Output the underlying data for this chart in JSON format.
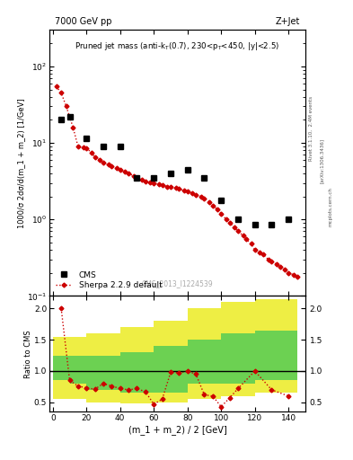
{
  "title_left": "7000 GeV pp",
  "title_right": "Z+Jet",
  "cms_label": "CMS_2013_I1224539",
  "rivet_label": "Rivet 3.1.10,  2.4M events",
  "arxiv_label": "[arXiv:1306.3436]",
  "mcplots_label": "mcplots.cern.ch",
  "ylabel_main": "1000/σ 2dσ/d(m_1 + m_2) [1/GeV]",
  "ylabel_ratio": "Ratio to CMS",
  "xlabel": "(m_1 + m_2) / 2 [GeV]",
  "cms_x": [
    5,
    10,
    20,
    30,
    40,
    50,
    60,
    70,
    80,
    90,
    100,
    110,
    120,
    130,
    140
  ],
  "cms_y": [
    20.0,
    22.0,
    11.5,
    9.0,
    9.0,
    3.5,
    3.5,
    4.0,
    4.5,
    3.5,
    1.8,
    1.0,
    0.85,
    0.85,
    1.0
  ],
  "sherpa_x": [
    2,
    5,
    8,
    10,
    12,
    15,
    18,
    20,
    23,
    25,
    28,
    30,
    33,
    35,
    38,
    40,
    43,
    45,
    48,
    50,
    53,
    55,
    58,
    60,
    63,
    65,
    68,
    70,
    73,
    75,
    78,
    80,
    83,
    85,
    88,
    90,
    93,
    95,
    98,
    100,
    103,
    105,
    108,
    110,
    113,
    115,
    118,
    120,
    123,
    125,
    128,
    130,
    133,
    135,
    138,
    140,
    143,
    145
  ],
  "sherpa_y": [
    55,
    45,
    30,
    22,
    16,
    9,
    8.8,
    8.5,
    7.5,
    6.5,
    6.0,
    5.5,
    5.2,
    5.0,
    4.7,
    4.5,
    4.2,
    4.0,
    3.7,
    3.5,
    3.3,
    3.1,
    3.05,
    3.0,
    2.9,
    2.8,
    2.7,
    2.7,
    2.6,
    2.5,
    2.4,
    2.3,
    2.2,
    2.1,
    2.0,
    1.9,
    1.7,
    1.5,
    1.35,
    1.2,
    1.0,
    0.9,
    0.78,
    0.7,
    0.62,
    0.55,
    0.48,
    0.4,
    0.37,
    0.35,
    0.3,
    0.28,
    0.26,
    0.24,
    0.22,
    0.2,
    0.19,
    0.18
  ],
  "ratio_x": [
    5,
    10,
    15,
    20,
    25,
    30,
    35,
    40,
    45,
    50,
    55,
    60,
    65,
    70,
    75,
    80,
    85,
    90,
    95,
    100,
    105,
    110,
    120,
    130,
    140
  ],
  "ratio_y": [
    2.0,
    0.85,
    0.76,
    0.73,
    0.71,
    0.8,
    0.76,
    0.72,
    0.7,
    0.72,
    0.67,
    0.47,
    0.55,
    0.98,
    0.97,
    1.0,
    0.95,
    0.62,
    0.6,
    0.43,
    0.57,
    0.72,
    1.0,
    0.7,
    0.6
  ],
  "ylim_main": [
    0.1,
    300
  ],
  "ylim_ratio": [
    0.35,
    2.2
  ],
  "yticks_ratio": [
    0.5,
    1.0,
    1.5,
    2.0
  ],
  "band_x_edges": [
    0,
    10,
    20,
    40,
    60,
    80,
    100,
    120,
    145
  ],
  "green_lo": [
    0.85,
    0.8,
    0.7,
    0.65,
    0.65,
    0.8,
    0.8,
    0.85
  ],
  "green_hi": [
    1.25,
    1.25,
    1.25,
    1.3,
    1.4,
    1.5,
    1.6,
    1.65
  ],
  "yellow_lo": [
    0.55,
    0.55,
    0.5,
    0.48,
    0.5,
    0.55,
    0.6,
    0.65
  ],
  "yellow_hi": [
    1.55,
    1.55,
    1.6,
    1.7,
    1.8,
    2.0,
    2.1,
    2.15
  ],
  "color_cms": "#000000",
  "color_sherpa": "#cc0000",
  "color_green": "#55cc55",
  "color_yellow": "#eeee44",
  "bg_color": "#ffffff"
}
